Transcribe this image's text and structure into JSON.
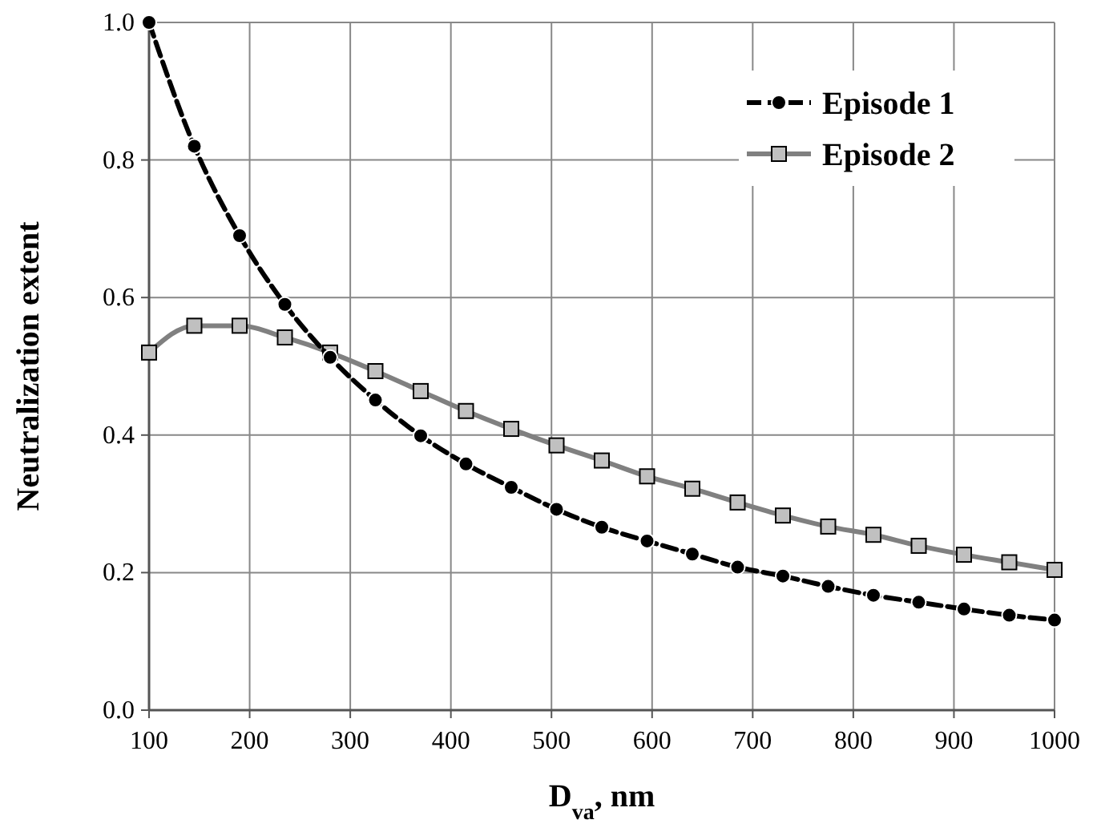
{
  "chart_data": {
    "type": "line",
    "xlabel": "D$_{va}$, nm",
    "ylabel": "Neutralization extent",
    "x": [
      100,
      145,
      190,
      235,
      280,
      325,
      370,
      415,
      460,
      505,
      550,
      595,
      640,
      685,
      730,
      775,
      820,
      865,
      910,
      955,
      1000
    ],
    "series": [
      {
        "name": "Episode 1",
        "color": "#000000",
        "marker": "circle",
        "line_style": "dashed",
        "values": [
          1.0,
          0.82,
          0.69,
          0.59,
          0.513,
          0.451,
          0.399,
          0.358,
          0.324,
          0.292,
          0.266,
          0.246,
          0.227,
          0.208,
          0.195,
          0.18,
          0.167,
          0.157,
          0.147,
          0.138,
          0.131
        ]
      },
      {
        "name": "Episode 2",
        "color": "#808080",
        "marker": "square",
        "line_style": "solid",
        "values": [
          0.52,
          0.559,
          0.559,
          0.542,
          0.52,
          0.493,
          0.464,
          0.435,
          0.409,
          0.385,
          0.363,
          0.34,
          0.322,
          0.302,
          0.283,
          0.267,
          0.255,
          0.239,
          0.226,
          0.215,
          0.204
        ]
      }
    ],
    "xlim": [
      100,
      1000
    ],
    "xticks": [
      100,
      200,
      300,
      400,
      500,
      600,
      700,
      800,
      900,
      1000
    ],
    "ylim": [
      0,
      1
    ],
    "yticks": [
      {
        "value": 0,
        "label": "0.0"
      },
      {
        "value": 0.2,
        "label": "0.2"
      },
      {
        "value": 0.4,
        "label": "0.4"
      },
      {
        "value": 0.6,
        "label": "0.6"
      },
      {
        "value": 0.8,
        "label": "0.8"
      },
      {
        "value": 1,
        "label": "1.0"
      }
    ],
    "grid": true,
    "legend": "top right"
  }
}
